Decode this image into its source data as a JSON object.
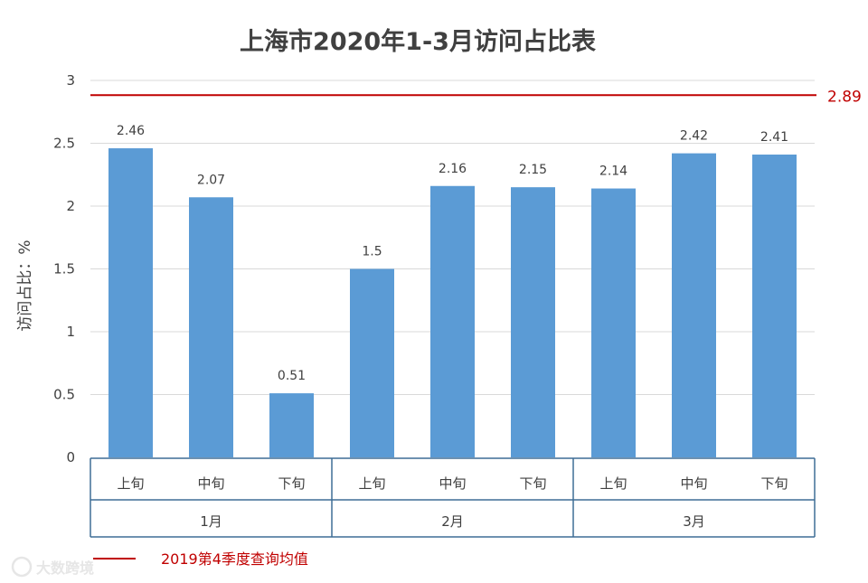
{
  "chart_data": {
    "type": "bar",
    "title": "上海市2020年1-3月访问占比表",
    "ylabel": "访问占比：%",
    "ylim": [
      0,
      3
    ],
    "yticks": [
      "0",
      "0.5",
      "1",
      "1.5",
      "2",
      "2.5",
      "3"
    ],
    "grid": true,
    "categories": [
      "上旬",
      "中旬",
      "下旬",
      "上旬",
      "中旬",
      "下旬",
      "上旬",
      "中旬",
      "下旬"
    ],
    "groups": [
      {
        "label": "1月",
        "size": 3
      },
      {
        "label": "2月",
        "size": 3
      },
      {
        "label": "3月",
        "size": 3
      }
    ],
    "values": [
      2.46,
      2.07,
      0.51,
      1.5,
      2.16,
      2.15,
      2.14,
      2.42,
      2.41
    ],
    "data_labels": [
      "2.46",
      "2.07",
      "0.51",
      "1.5",
      "2.16",
      "2.15",
      "2.14",
      "2.42",
      "2.41"
    ],
    "bar_color": "#5b9bd5",
    "reference_line": {
      "value": 2.89,
      "label": "2.89",
      "color": "#c00000"
    },
    "legend": {
      "position": "bottom-left",
      "entries": [
        {
          "name": "2019第4季度查询均值",
          "color": "#c00000"
        }
      ]
    }
  },
  "watermark": "大数跨境"
}
